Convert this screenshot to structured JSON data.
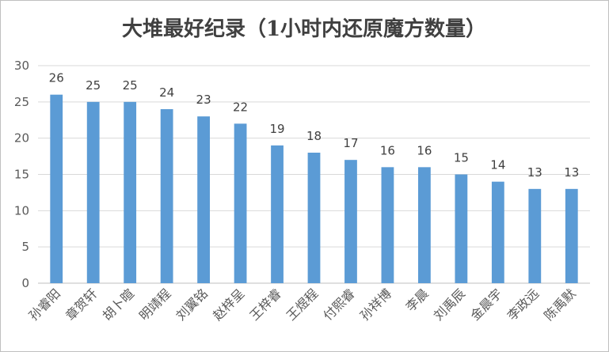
{
  "chart_data": {
    "type": "bar",
    "title": "大堆最好纪录（1小时内还原魔方数量）",
    "xlabel": "",
    "ylabel": "",
    "categories": [
      "孙睿阳",
      "章贺轩",
      "胡卜暄",
      "明靖程",
      "刘翼铭",
      "赵梓呈",
      "王梓睿",
      "王煜程",
      "付熙睿",
      "孙祥博",
      "李晨",
      "刘禹辰",
      "金晨宇",
      "李政远",
      "陈禹默"
    ],
    "values": [
      26,
      25,
      25,
      24,
      23,
      22,
      19,
      18,
      17,
      16,
      16,
      15,
      14,
      13,
      13
    ],
    "ylim": [
      0,
      30
    ],
    "yticks": [
      0,
      5,
      10,
      15,
      20,
      25,
      30
    ],
    "grid": true,
    "legend": "none",
    "bar_color": "#5b9bd5",
    "data_labels": true
  }
}
